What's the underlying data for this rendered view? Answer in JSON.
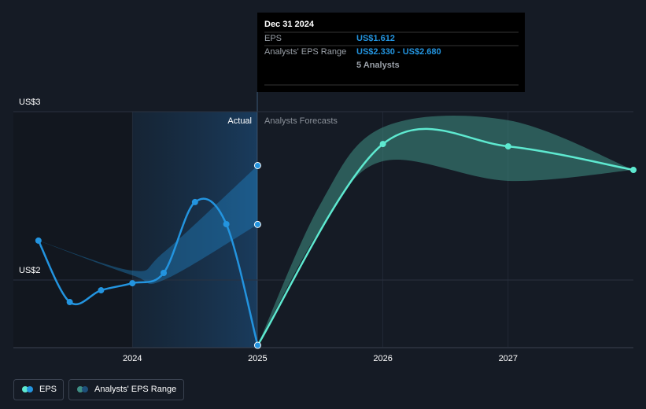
{
  "chart_data": {
    "type": "line",
    "ylim": [
      1.6,
      3
    ],
    "yticks": [
      {
        "value": 3,
        "label": "US$3"
      },
      {
        "value": 2,
        "label": "US$2"
      }
    ],
    "xlim": [
      2023.05,
      2028.0
    ],
    "xticks": [
      2024,
      2025,
      2026,
      2027
    ],
    "series": [
      {
        "name": "EPS",
        "color": "#2394df",
        "x": [
          2023.25,
          2023.5,
          2023.75,
          2024.0,
          2024.25,
          2024.5,
          2024.75,
          2025.0
        ],
        "values": [
          2.234,
          1.869,
          1.939,
          1.981,
          2.042,
          2.463,
          2.332,
          1.612
        ]
      },
      {
        "color": "#5ee9d0",
        "x": [
          2025.0,
          2026.0,
          2027.0,
          2028.0
        ],
        "values": [
          1.612,
          2.808,
          2.794,
          2.654
        ]
      }
    ],
    "ranges": [
      {
        "name": "Analysts' EPS Range",
        "color": "#2394df",
        "x": [
          2023.25,
          2024.0,
          2024.25,
          2025.0
        ],
        "low": [
          2.234,
          2.028,
          2.0,
          2.33
        ],
        "high": [
          2.234,
          2.056,
          2.164,
          2.68
        ]
      },
      {
        "color": "#3f8f85",
        "x": [
          2025.0,
          2025.5,
          2026.0,
          2027.0,
          2028.0
        ],
        "low": [
          1.612,
          2.3,
          2.706,
          2.589,
          2.654
        ],
        "high": [
          1.612,
          2.45,
          2.907,
          2.949,
          2.654
        ]
      }
    ],
    "divider_labels": {
      "left": "Actual",
      "right": "Analysts Forecasts"
    },
    "tooltip": {
      "date": "Dec 31 2024",
      "rows": [
        [
          "EPS",
          "US$1.612"
        ],
        [
          "Analysts' EPS Range",
          "US$2.330 - US$2.680"
        ],
        [
          "",
          "5 Analysts"
        ]
      ]
    }
  }
}
